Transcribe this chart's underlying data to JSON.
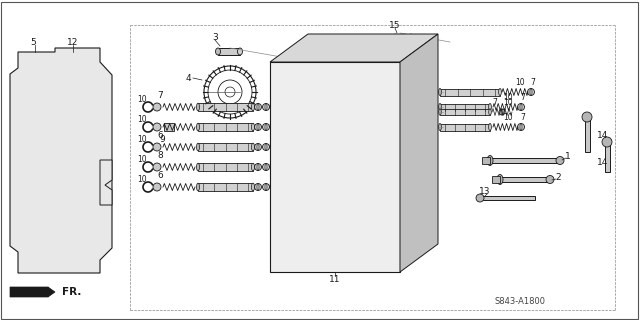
{
  "background_color": "#ffffff",
  "diagram_color": "#1a1a1a",
  "catalog_number": "S843-A1800",
  "fr_label": "FR.",
  "figsize": [
    6.4,
    3.2
  ],
  "dpi": 100,
  "box_color": "#888888",
  "plate_color": "#e8e8e8",
  "body_color": "#d8d8d8",
  "body_dark": "#c0c0c0",
  "body_light": "#eeeeee"
}
